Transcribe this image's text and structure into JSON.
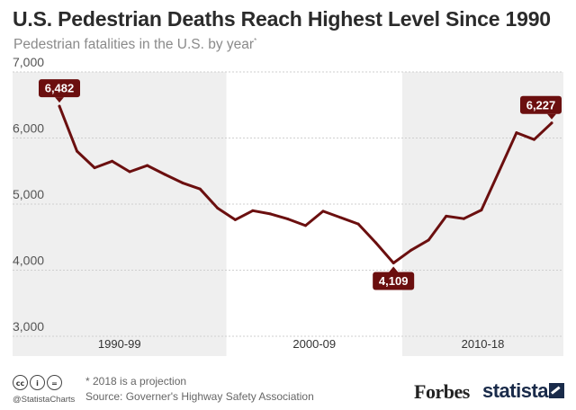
{
  "title": "U.S. Pedestrian Deaths Reach Highest Level Since 1990",
  "subtitle": "Pedestrian fatalities in the U.S. by year",
  "subtitle_mark": "*",
  "chart_data": {
    "type": "line",
    "title": "U.S. Pedestrian Deaths Reach Highest Level Since 1990",
    "subtitle": "Pedestrian fatalities in the U.S. by year*",
    "xlabel": "",
    "ylabel": "",
    "ylim": [
      2700,
      7000
    ],
    "yticks": [
      3000,
      4000,
      5000,
      6000,
      7000
    ],
    "ytick_labels": [
      "3,000",
      "4,000",
      "5,000",
      "6,000",
      "7,000"
    ],
    "grid": true,
    "x": [
      1990,
      1991,
      1992,
      1993,
      1994,
      1995,
      1996,
      1997,
      1998,
      1999,
      2000,
      2001,
      2002,
      2003,
      2004,
      2005,
      2006,
      2007,
      2008,
      2009,
      2010,
      2011,
      2012,
      2013,
      2014,
      2015,
      2016,
      2017,
      2018
    ],
    "series": [
      {
        "name": "Pedestrian fatalities",
        "color": "#6b0f0f",
        "values": [
          6482,
          5801,
          5549,
          5649,
          5489,
          5584,
          5449,
          5321,
          5228,
          4939,
          4763,
          4901,
          4851,
          4774,
          4675,
          4892,
          4795,
          4699,
          4414,
          4109,
          4302,
          4457,
          4818,
          4779,
          4910,
          5494,
          6080,
          5977,
          6227
        ]
      }
    ],
    "bands": [
      {
        "label": "1990-99",
        "start": 1990,
        "end": 1999,
        "shaded": true
      },
      {
        "label": "2000-09",
        "start": 2000,
        "end": 2009,
        "shaded": false
      },
      {
        "label": "2010-18",
        "start": 2010,
        "end": 2018,
        "shaded": true
      }
    ],
    "annotations": [
      {
        "year": 1990,
        "text": "6,482",
        "position": "above"
      },
      {
        "year": 2009,
        "text": "4,109",
        "position": "below"
      },
      {
        "year": 2018,
        "text": "6,227",
        "position": "above"
      }
    ],
    "colors": {
      "line": "#6b0f0f",
      "label_bg": "#6b0f0f",
      "band": "#efefef",
      "grid": "#cfcfcf"
    }
  },
  "footer": {
    "cc_icons": [
      "cc",
      "i",
      "="
    ],
    "handle": "@StatistaCharts",
    "note": "* 2018 is a projection",
    "source": "Source: Governer's Highway Safety Association",
    "forbes": "Forbes",
    "statista": "statista"
  }
}
